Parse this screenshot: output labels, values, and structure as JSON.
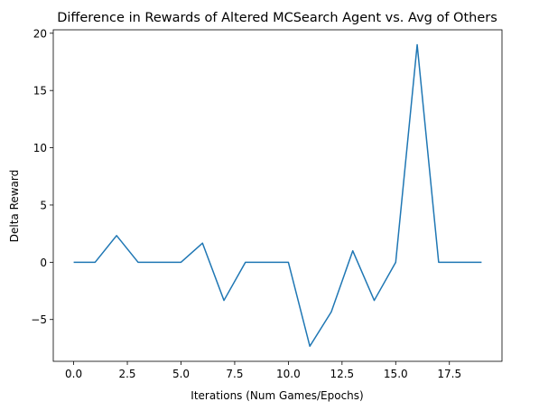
{
  "chart_data": {
    "type": "line",
    "title": "Difference in Rewards of Altered MCSearch Agent vs. Avg of Others",
    "xlabel": "Iterations (Num Games/Epochs)",
    "ylabel": "Delta Reward",
    "xlim": [
      -0.95,
      19.95
    ],
    "ylim": [
      -8.65,
      20.3
    ],
    "x_ticks": [
      0.0,
      2.5,
      5.0,
      7.5,
      10.0,
      12.5,
      15.0,
      17.5
    ],
    "x_tick_labels": [
      "0.0",
      "2.5",
      "5.0",
      "7.5",
      "10.0",
      "12.5",
      "15.0",
      "17.5"
    ],
    "y_ticks": [
      -5,
      0,
      5,
      10,
      15,
      20
    ],
    "y_tick_labels": [
      "−5",
      "0",
      "5",
      "10",
      "15",
      "20"
    ],
    "grid": false,
    "series": [
      {
        "color": "#1f77b4",
        "x": [
          0,
          1,
          2,
          3,
          4,
          5,
          6,
          7,
          8,
          9,
          10,
          11,
          12,
          13,
          14,
          15,
          16,
          17,
          18,
          19
        ],
        "values": [
          0,
          0,
          2.33,
          0,
          0,
          0,
          1.67,
          -3.33,
          0,
          0,
          0,
          -7.33,
          -4.33,
          1.0,
          -3.33,
          0,
          19.0,
          0,
          0,
          0
        ]
      }
    ]
  }
}
